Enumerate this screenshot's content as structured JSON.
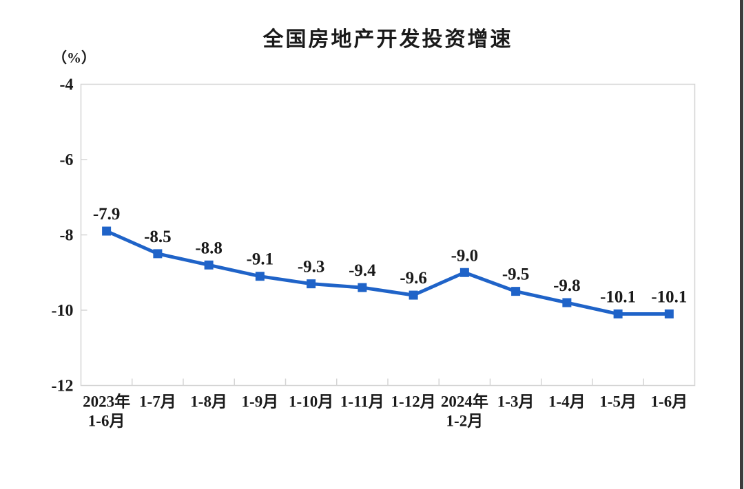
{
  "page": {
    "background_color": "#ffffff",
    "right_edge_strip_color": "#3c3c3c"
  },
  "chart_data": {
    "type": "line",
    "title": "全国房地产开发投资增速",
    "unit_label": "（%）",
    "categories": [
      "2023年\n1-6月",
      "1-7月",
      "1-8月",
      "1-9月",
      "1-10月",
      "1-11月",
      "1-12月",
      "2024年\n1-2月",
      "1-3月",
      "1-4月",
      "1-5月",
      "1-6月"
    ],
    "values": [
      -7.9,
      -8.5,
      -8.8,
      -9.1,
      -9.3,
      -9.4,
      -9.6,
      -9.0,
      -9.5,
      -9.8,
      -10.1,
      -10.1
    ],
    "data_labels": [
      "-7.9",
      "-8.5",
      "-8.8",
      "-9.1",
      "-9.3",
      "-9.4",
      "-9.6",
      "-9.0",
      "-9.5",
      "-9.8",
      "-10.1",
      "-10.1"
    ],
    "ylim": [
      -12,
      -4
    ],
    "yticks": [
      -4,
      -6,
      -8,
      -10,
      -12
    ],
    "ytick_labels": [
      "-4",
      "-6",
      "-8",
      "-10",
      "-12"
    ],
    "grid": false,
    "legend": null,
    "marker": "square",
    "line_color": "#1f63c8",
    "axis_color": "#d5d5d5",
    "text_color": "#1a1a1a"
  }
}
